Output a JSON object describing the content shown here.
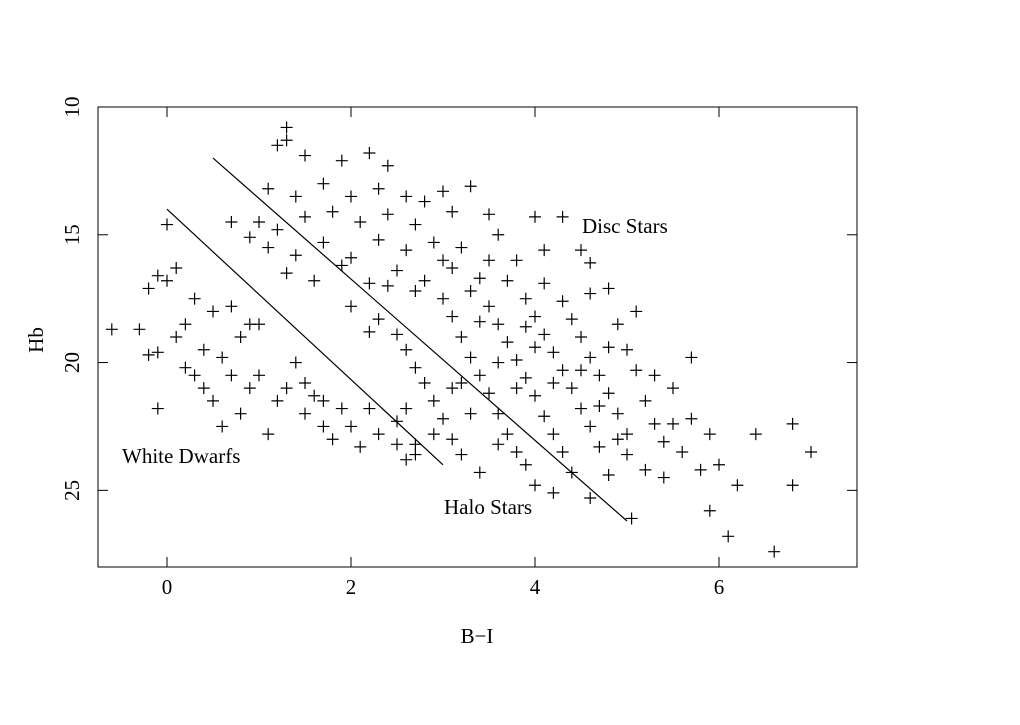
{
  "chart_data": {
    "type": "scatter",
    "xlabel": "B−I",
    "ylabel": "Hb",
    "color": "#000000",
    "marker": "plus",
    "xlim": [
      -0.75,
      7.5
    ],
    "xticks": [
      0,
      2,
      4,
      6
    ],
    "ylim": [
      28,
      10
    ],
    "yticks": [
      10,
      15,
      20,
      25
    ],
    "x": [
      -0.6,
      -0.3,
      -0.2,
      -0.1,
      0,
      0.1,
      -0.1,
      -0.2,
      -0.1,
      0.1,
      0.2,
      0.3,
      0.4,
      0.5,
      0.6,
      0.7,
      0.8,
      0.9,
      1.0,
      1.1,
      1.2,
      1.4,
      1.5,
      1.6,
      1.7,
      1.8,
      1.9,
      2.0,
      2.1,
      2.3,
      2.5,
      2.6,
      2.7,
      0.3,
      0.5,
      0.6,
      0.8,
      1.3,
      1.5,
      1.0,
      0.7,
      0.9,
      1.7,
      2.2,
      0.2,
      0.4,
      0,
      0.7,
      1.3,
      1.3,
      1.2,
      1.5,
      1.9,
      2.2,
      2.4,
      1.1,
      1.4,
      1.7,
      2.0,
      2.3,
      2.6,
      2.8,
      3.0,
      3.3,
      1.0,
      1.2,
      1.5,
      1.8,
      2.1,
      2.4,
      2.7,
      3.1,
      3.5,
      1.1,
      1.4,
      1.7,
      2.0,
      2.3,
      2.6,
      2.9,
      3.2,
      3.6,
      4.0,
      4.3,
      1.3,
      1.6,
      1.9,
      2.2,
      2.5,
      2.8,
      3.1,
      3.4,
      3.8,
      4.1,
      4.5,
      4.6,
      0.9,
      2.0,
      2.3,
      2.5,
      2.6,
      2.7,
      2.8,
      2.9,
      3.0,
      3.1,
      3.0,
      3.1,
      3.2,
      3.3,
      3.4,
      3.5,
      3.6,
      3.7,
      3.8,
      3.3,
      3.5,
      3.6,
      3.7,
      3.8,
      3.9,
      4.0,
      4.1,
      4.2,
      4.3,
      3.7,
      3.9,
      4.0,
      4.1,
      4.2,
      4.3,
      4.4,
      4.5,
      4.6,
      4.7,
      4.1,
      4.3,
      4.4,
      4.5,
      4.6,
      4.7,
      4.8,
      4.9,
      5.0,
      4.6,
      4.8,
      4.9,
      5.0,
      5.1,
      5.2,
      5.3,
      5.4,
      2.6,
      2.9,
      3.2,
      3.4,
      3.6,
      3.9,
      4.0,
      4.2,
      4.4,
      4.6,
      4.8,
      5.0,
      5.2,
      5.4,
      5.6,
      5.8,
      6.0,
      5.5,
      5.7,
      5.9,
      5.05,
      5.9,
      6.1,
      6.2,
      6.4,
      6.6,
      6.8,
      6.8,
      7.0,
      5.7,
      5.5,
      5.3,
      3.5,
      3.0,
      2.7,
      2.4,
      2.2,
      3.2,
      3.6,
      3.8,
      4.2,
      3.4,
      4.0,
      3.9,
      4.5,
      4.8,
      3.1,
      3.3,
      4.7,
      4.9,
      2.7,
      2.5,
      5.1
    ],
    "values": [
      18.7,
      18.7,
      17.1,
      16.6,
      16.8,
      16.3,
      19.6,
      19.7,
      21.8,
      19,
      18.5,
      17.5,
      19.5,
      18,
      19.8,
      20.5,
      19,
      21,
      20.5,
      22.8,
      21.5,
      20,
      22,
      21.3,
      22.5,
      23,
      21.8,
      22.5,
      23.3,
      22.8,
      23.2,
      23.8,
      23.6,
      20.5,
      21.5,
      22.5,
      22,
      21,
      20.8,
      18.5,
      17.8,
      18.5,
      21.5,
      21.8,
      20.2,
      21,
      14.6,
      14.5,
      10.8,
      11.3,
      11.5,
      11.9,
      12.1,
      11.8,
      12.3,
      13.2,
      13.5,
      13,
      13.5,
      13.2,
      13.5,
      13.7,
      13.3,
      13.1,
      14.5,
      14.8,
      14.3,
      14.1,
      14.5,
      14.2,
      14.6,
      14.1,
      14.2,
      15.5,
      15.8,
      15.3,
      15.9,
      15.2,
      15.6,
      15.3,
      15.5,
      15.0,
      14.3,
      14.3,
      16.5,
      16.8,
      16.2,
      16.9,
      16.4,
      16.8,
      16.3,
      16.7,
      16.0,
      15.6,
      15.6,
      16.1,
      15.1,
      17.8,
      18.3,
      18.9,
      19.5,
      20.2,
      20.8,
      21.5,
      22.2,
      23,
      17.5,
      18.2,
      19.0,
      19.8,
      20.5,
      21.2,
      22,
      22.8,
      23.5,
      17.2,
      17.8,
      18.5,
      19.2,
      19.9,
      20.6,
      21.3,
      22.1,
      22.8,
      23.5,
      16.8,
      17.5,
      18.2,
      18.9,
      19.6,
      20.3,
      21.0,
      21.8,
      22.5,
      23.3,
      16.9,
      17.6,
      18.3,
      19.0,
      19.8,
      20.5,
      21.2,
      22.0,
      22.8,
      17.3,
      17.1,
      18.5,
      19.5,
      20.3,
      21.5,
      22.4,
      23.1,
      21.8,
      22.8,
      23.6,
      24.3,
      23.2,
      24.0,
      24.8,
      25.1,
      24.3,
      25.3,
      24.4,
      23.6,
      24.2,
      24.5,
      23.5,
      24.2,
      24.0,
      22.4,
      22.2,
      22.8,
      26.1,
      25.8,
      26.8,
      24.8,
      22.8,
      27.4,
      22.4,
      24.8,
      23.5,
      19.8,
      21.0,
      20.5,
      16.0,
      16.0,
      17.2,
      17.0,
      18.8,
      20.8,
      20.0,
      21.0,
      20.8,
      18.4,
      19.4,
      18.6,
      20.3,
      19.4,
      21.0,
      22.0,
      21.7,
      23.0,
      23.2,
      22.3,
      18.0
    ],
    "lines": [
      {
        "x": [
          0.5,
          5.0
        ],
        "values": [
          12,
          26.2
        ]
      },
      {
        "x": [
          0,
          3.0
        ],
        "values": [
          14,
          24
        ]
      }
    ],
    "annotations": [
      "Disc Stars",
      "White Dwarfs",
      "Halo Stars"
    ]
  }
}
